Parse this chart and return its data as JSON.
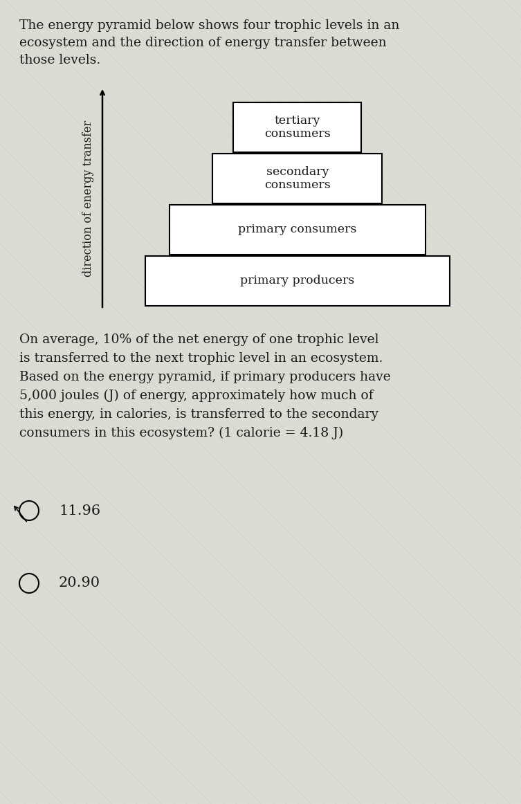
{
  "intro_text_line1": "The energy pyramid below shows four trophic levels in an",
  "intro_text_line2": "ecosystem and the direction of energy transfer between",
  "intro_text_line3": "those levels.",
  "pyramid_levels": [
    {
      "label": "tertiary\nconsumers"
    },
    {
      "label": "secondary\nconsumers"
    },
    {
      "label": "primary consumers"
    },
    {
      "label": "primary producers"
    }
  ],
  "y_axis_label": "direction of energy transfer",
  "question_line1": "On average, 10% of the net energy of one trophic level",
  "question_line2": "is transferred to the next trophic level in an ecosystem.",
  "question_line3": "Based on the energy pyramid, if primary producers have",
  "question_line4": "5,000 joules (J) of energy, approximately how much of",
  "question_line5": "this energy, in calories, is transferred to the secondary",
  "question_line6": "consumers in this ecosystem? (1 calorie = 4.18 J)",
  "answer_options": [
    "11.96",
    "20.90"
  ],
  "bg_color": "#dcdcd4",
  "box_facecolor": "#ffffff",
  "box_edgecolor": "#000000",
  "text_color": "#1a1a1a",
  "font_size_intro": 13.5,
  "font_size_level": 12.5,
  "font_size_question": 13.5,
  "font_size_answer": 15,
  "font_size_axis_label": 11.5
}
